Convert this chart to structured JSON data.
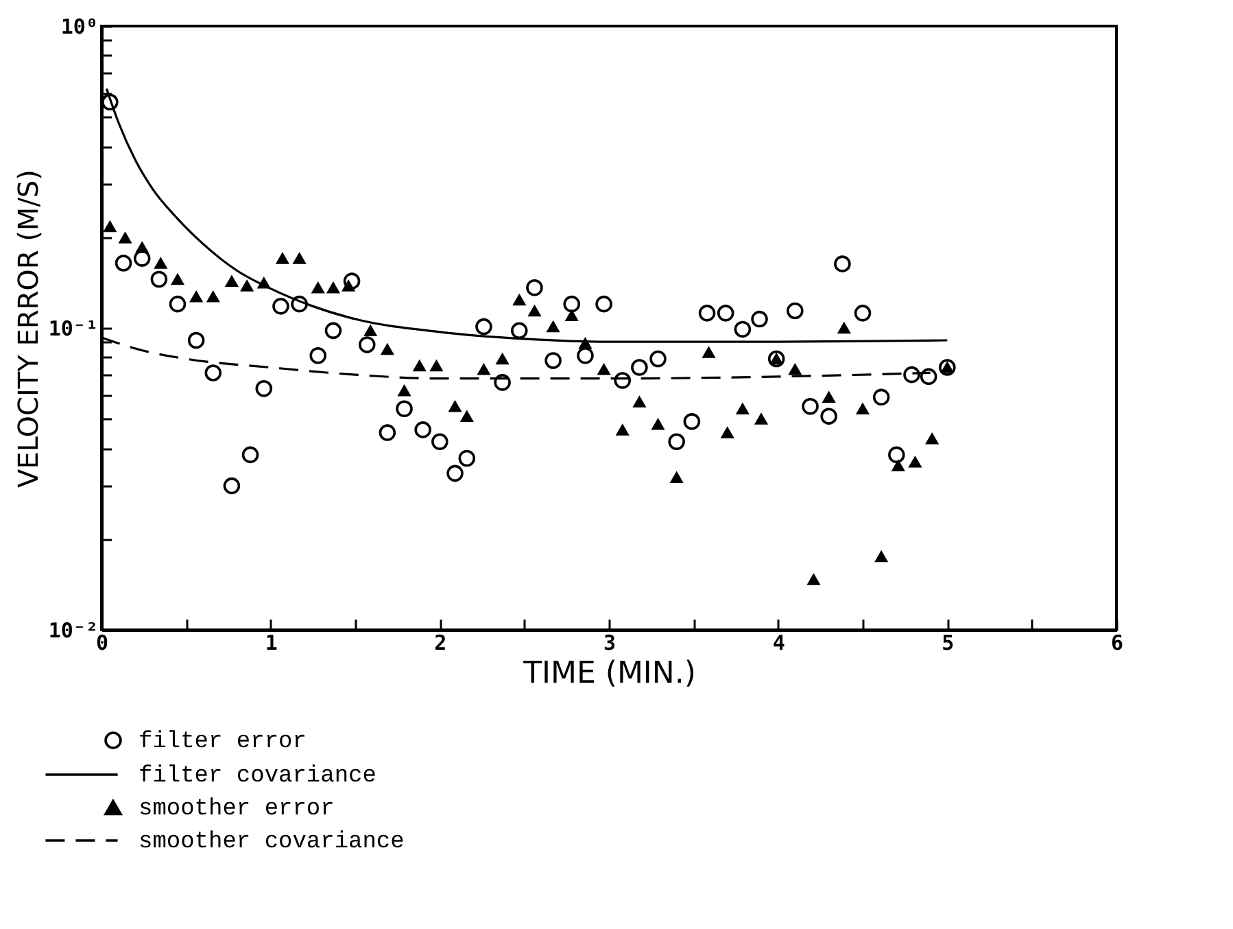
{
  "chart_data": {
    "type": "scatter",
    "xlabel": "TIME  (MIN.)",
    "ylabel": "VELOCITY ERROR  (M/S)",
    "xlim": [
      0,
      6
    ],
    "xticks": [
      0,
      {
        "value": 0.5,
        "label": null
      },
      1,
      {
        "value": 1.5,
        "label": null
      },
      2,
      {
        "value": 2.5,
        "label": null
      },
      3,
      {
        "value": 3.5,
        "label": null
      },
      4,
      {
        "value": 4.5,
        "label": null
      },
      5,
      {
        "value": 5.5,
        "label": null
      },
      6
    ],
    "ylim": [
      0.01,
      1
    ],
    "log": true,
    "yticks": [
      {
        "value": 0.01,
        "label": "10⁻²"
      },
      {
        "value": 0.02,
        "label": null
      },
      {
        "value": 0.03,
        "label": null
      },
      {
        "value": 0.04,
        "label": null
      },
      {
        "value": 0.05,
        "label": null
      },
      {
        "value": 0.06,
        "label": null
      },
      {
        "value": 0.07,
        "label": null
      },
      {
        "value": 0.08,
        "label": null
      },
      {
        "value": 0.09,
        "label": null
      },
      {
        "value": 0.1,
        "label": "10⁻¹"
      },
      {
        "value": 0.2,
        "label": null
      },
      {
        "value": 0.3,
        "label": null
      },
      {
        "value": 0.4,
        "label": null
      },
      {
        "value": 0.5,
        "label": null
      },
      {
        "value": 0.6,
        "label": null
      },
      {
        "value": 0.7,
        "label": null
      },
      {
        "value": 0.8,
        "label": null
      },
      {
        "value": 0.9,
        "label": null
      },
      {
        "value": 1,
        "label": "10⁰"
      }
    ],
    "grid": false,
    "legend": "bottom",
    "series": [
      {
        "name": "filter error",
        "marker": "circle",
        "color": "#000000",
        "x": [
          0.05,
          0.13,
          0.24,
          0.34,
          0.45,
          0.56,
          0.66,
          0.77,
          0.88,
          0.96,
          1.06,
          1.17,
          1.28,
          1.37,
          1.48,
          1.57,
          1.69,
          1.79,
          1.9,
          2.0,
          2.09,
          2.16,
          2.26,
          2.37,
          2.47,
          2.56,
          2.67,
          2.78,
          2.86,
          2.97,
          3.08,
          3.18,
          3.29,
          3.4,
          3.49,
          3.58,
          3.69,
          3.79,
          3.89,
          3.99,
          4.1,
          4.19,
          4.3,
          4.38,
          4.5,
          4.61,
          4.7,
          4.79,
          4.89,
          5.0
        ],
        "values": [
          0.56,
          0.164,
          0.17,
          0.145,
          0.12,
          0.091,
          0.071,
          0.03,
          0.038,
          0.063,
          0.118,
          0.12,
          0.081,
          0.098,
          0.143,
          0.088,
          0.045,
          0.054,
          0.046,
          0.042,
          0.033,
          0.037,
          0.101,
          0.066,
          0.098,
          0.136,
          0.078,
          0.12,
          0.081,
          0.12,
          0.067,
          0.074,
          0.079,
          0.042,
          0.049,
          0.112,
          0.112,
          0.099,
          0.107,
          0.079,
          0.114,
          0.055,
          0.051,
          0.163,
          0.112,
          0.059,
          0.038,
          0.07,
          0.069,
          0.074
        ]
      },
      {
        "name": "filter covariance",
        "type": "line",
        "line_style": "solid",
        "marker": "none",
        "color": "#000000",
        "x": [
          0.03,
          0.1,
          0.2,
          0.3,
          0.45,
          0.6,
          0.8,
          1.0,
          1.25,
          1.5,
          2.0,
          2.5,
          3.0,
          4.0,
          5.0
        ],
        "values": [
          0.62,
          0.48,
          0.36,
          0.29,
          0.23,
          0.19,
          0.155,
          0.135,
          0.118,
          0.107,
          0.097,
          0.092,
          0.09,
          0.09,
          0.091
        ]
      },
      {
        "name": "smoother error",
        "marker": "triangle",
        "color": "#000000",
        "x": [
          0.05,
          0.14,
          0.24,
          0.35,
          0.45,
          0.56,
          0.66,
          0.77,
          0.86,
          0.96,
          1.07,
          1.17,
          1.28,
          1.37,
          1.46,
          1.59,
          1.69,
          1.79,
          1.88,
          1.98,
          2.09,
          2.16,
          2.26,
          2.37,
          2.47,
          2.56,
          2.67,
          2.78,
          2.86,
          2.97,
          3.08,
          3.18,
          3.29,
          3.4,
          3.59,
          3.7,
          3.79,
          3.9,
          3.99,
          4.1,
          4.21,
          4.3,
          4.39,
          4.5,
          4.61,
          4.71,
          4.81,
          4.91,
          5.0
        ],
        "values": [
          0.217,
          0.199,
          0.185,
          0.164,
          0.145,
          0.127,
          0.127,
          0.143,
          0.138,
          0.141,
          0.17,
          0.17,
          0.136,
          0.136,
          0.138,
          0.098,
          0.085,
          0.062,
          0.075,
          0.075,
          0.055,
          0.051,
          0.073,
          0.079,
          0.124,
          0.114,
          0.101,
          0.11,
          0.089,
          0.073,
          0.046,
          0.057,
          0.048,
          0.032,
          0.083,
          0.045,
          0.054,
          0.05,
          0.079,
          0.073,
          0.0147,
          0.059,
          0.1,
          0.054,
          0.0175,
          0.035,
          0.036,
          0.043,
          0.074
        ]
      },
      {
        "name": "smoother covariance",
        "type": "line",
        "line_style": "dashed",
        "marker": "none",
        "color": "#000000",
        "x": [
          0.0,
          0.25,
          0.5,
          1.0,
          1.5,
          2.0,
          3.0,
          4.0,
          4.9
        ],
        "values": [
          0.093,
          0.084,
          0.079,
          0.074,
          0.07,
          0.068,
          0.068,
          0.069,
          0.071
        ]
      }
    ]
  }
}
